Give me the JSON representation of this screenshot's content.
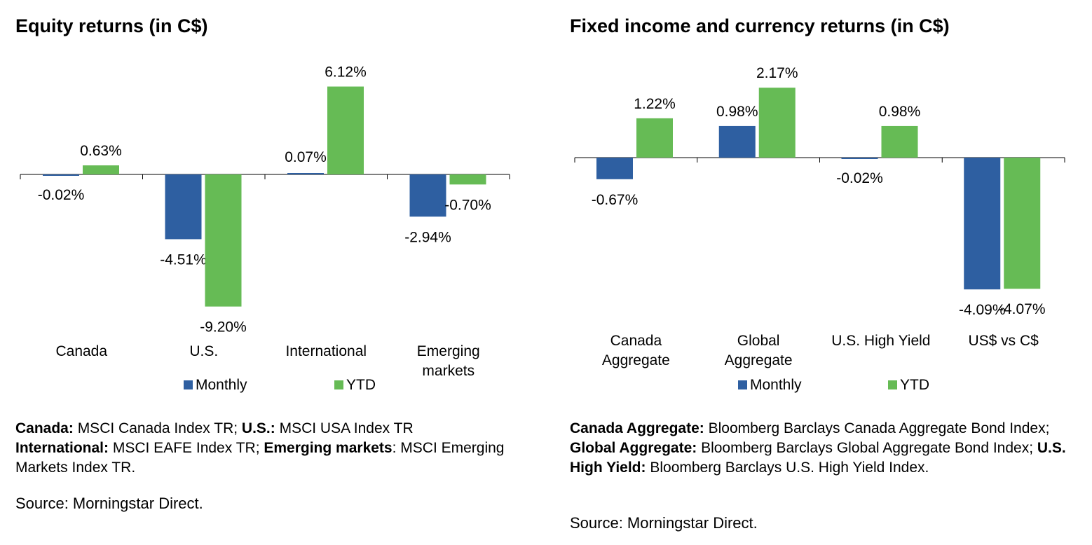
{
  "chart_data": [
    {
      "type": "bar",
      "title": "Equity returns (in C$)",
      "categories": [
        "Canada",
        "U.S.",
        "International",
        "Emerging markets"
      ],
      "category_lines": [
        [
          "Canada"
        ],
        [
          "U.S."
        ],
        [
          "International"
        ],
        [
          "Emerging",
          "markets"
        ]
      ],
      "series": [
        {
          "name": "Monthly",
          "values": [
            -0.02,
            -4.51,
            0.07,
            -2.94
          ],
          "labels": [
            "-0.02%",
            "-4.51%",
            "0.07%",
            "-2.94%"
          ],
          "color": "#2E5FA1"
        },
        {
          "name": "YTD",
          "values": [
            0.63,
            -9.2,
            6.12,
            -0.7
          ],
          "labels": [
            "0.63%",
            "-9.20%",
            "6.12%",
            "-0.70%"
          ],
          "color": "#66BB55"
        }
      ],
      "legend_position": "bottom",
      "grid": false
    },
    {
      "type": "bar",
      "title": "Fixed income and currency returns (in C$)",
      "categories": [
        "Canada Aggregate",
        "Global Aggregate",
        "U.S. High Yield",
        "US$ vs C$"
      ],
      "category_lines": [
        [
          "Canada",
          "Aggregate"
        ],
        [
          "Global",
          "Aggregate"
        ],
        [
          "U.S. High Yield"
        ],
        [
          "US$ vs C$"
        ]
      ],
      "series": [
        {
          "name": "Monthly",
          "values": [
            -0.67,
            0.98,
            -0.02,
            -4.09
          ],
          "labels": [
            "-0.67%",
            "0.98%",
            "-0.02%",
            "-4.09%"
          ],
          "color": "#2E5FA1"
        },
        {
          "name": "YTD",
          "values": [
            1.22,
            2.17,
            0.98,
            -4.07
          ],
          "labels": [
            "1.22%",
            "2.17%",
            "0.98%",
            "-4.07%"
          ],
          "color": "#66BB55"
        }
      ],
      "legend_position": "bottom",
      "grid": false
    }
  ],
  "notes": {
    "left": [
      {
        "bold": "Canada:",
        "text": " MSCI Canada Index TR; "
      },
      {
        "bold": "U.S.:",
        "text": " MSCI USA Index TR"
      },
      {
        "bold": "International:",
        "text": " MSCI EAFE Index TR; "
      },
      {
        "bold": "Emerging markets",
        "text": ": MSCI Emerging Markets Index TR."
      }
    ],
    "right": [
      {
        "bold": "Canada Aggregate:",
        "text": " Bloomberg Barclays Canada Aggregate Bond Index; "
      },
      {
        "bold": "Global Aggregate:",
        "text": " Bloomberg Barclays Global Aggregate Bond Index; "
      },
      {
        "bold": "U.S. High Yield:",
        "text": " Bloomberg Barclays U.S. High Yield Index."
      }
    ]
  },
  "source": {
    "left": "Source: Morningstar Direct.",
    "right": "Source: Morningstar Direct."
  }
}
